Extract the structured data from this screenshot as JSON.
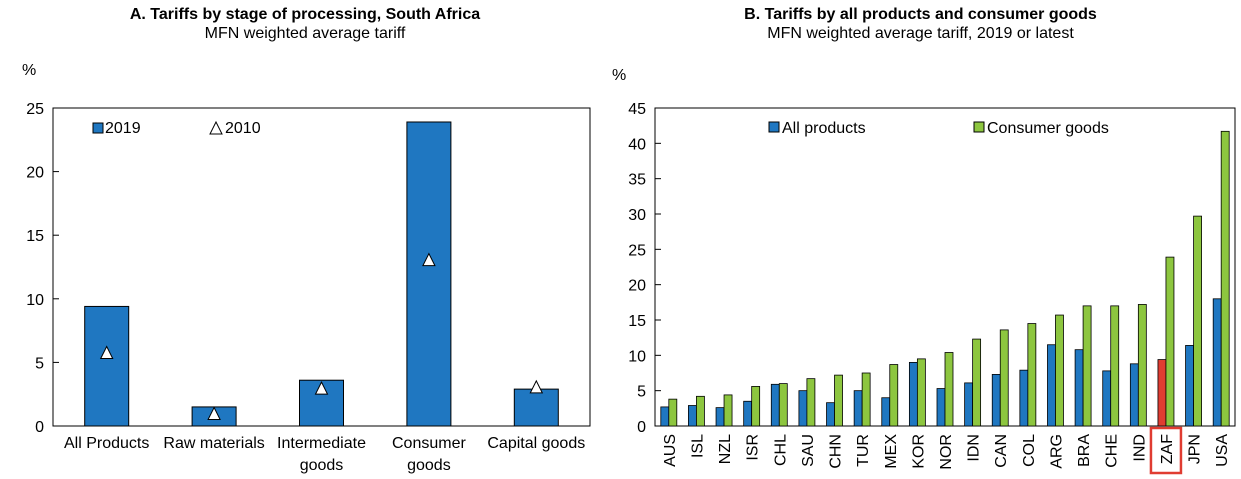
{
  "chart_data": [
    {
      "type": "bar",
      "panel": "A",
      "title": "A. Tariffs by stage of processing, South Africa",
      "subtitle": "MFN weighted average tariff",
      "ylabel": "%",
      "ylim": [
        0,
        25
      ],
      "yticks": [
        0,
        5,
        10,
        15,
        20,
        25
      ],
      "grid": false,
      "legend_position": "top-left",
      "categories": [
        [
          "All Products"
        ],
        [
          "Raw materials"
        ],
        [
          "Intermediate",
          "goods"
        ],
        [
          "Consumer",
          "goods"
        ],
        [
          "Capital goods"
        ]
      ],
      "series": [
        {
          "name": "2019",
          "kind": "bar",
          "color": "#1f77c1",
          "values": [
            9.4,
            1.5,
            3.6,
            23.9,
            2.9
          ]
        },
        {
          "name": "2010",
          "kind": "marker",
          "marker": "triangle",
          "color": "#ffffff",
          "values": [
            5.7,
            0.9,
            2.9,
            13.0,
            3.0
          ]
        }
      ]
    },
    {
      "type": "bar",
      "panel": "B",
      "title": "B. Tariffs by all products and consumer goods",
      "subtitle": "MFN weighted average tariff, 2019 or latest",
      "ylabel": "%",
      "ylim": [
        0,
        45
      ],
      "yticks": [
        0,
        5,
        10,
        15,
        20,
        25,
        30,
        35,
        40,
        45
      ],
      "grid": false,
      "legend_position": "top-center",
      "highlight": {
        "category": "ZAF",
        "color": "#e03c31"
      },
      "categories": [
        "AUS",
        "ISL",
        "NZL",
        "ISR",
        "CHL",
        "SAU",
        "CHN",
        "TUR",
        "MEX",
        "KOR",
        "NOR",
        "IDN",
        "CAN",
        "COL",
        "ARG",
        "BRA",
        "CHE",
        "IND",
        "ZAF",
        "JPN",
        "USA"
      ],
      "series": [
        {
          "name": "All products",
          "color": "#1f77c1",
          "values": [
            2.7,
            2.9,
            2.6,
            3.5,
            5.9,
            5.0,
            3.3,
            5.0,
            4.0,
            9.0,
            5.3,
            6.1,
            7.3,
            7.9,
            11.5,
            10.8,
            7.8,
            8.8,
            9.4,
            11.4,
            18.0
          ]
        },
        {
          "name": "Consumer goods",
          "color": "#8dc63f",
          "values": [
            3.8,
            4.2,
            4.4,
            5.6,
            6.0,
            6.7,
            7.2,
            7.5,
            8.7,
            9.5,
            10.4,
            12.3,
            13.6,
            14.5,
            15.7,
            17.0,
            17.0,
            17.2,
            23.9,
            29.7,
            41.7
          ]
        }
      ]
    }
  ]
}
